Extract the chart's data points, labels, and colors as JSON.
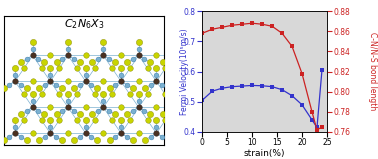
{
  "strain": [
    0,
    2,
    4,
    6,
    8,
    10,
    12,
    14,
    16,
    18,
    20,
    22,
    23,
    24
  ],
  "fermi_velocity": [
    0.505,
    0.535,
    0.545,
    0.55,
    0.552,
    0.554,
    0.553,
    0.55,
    0.54,
    0.52,
    0.49,
    0.44,
    0.415,
    0.605
  ],
  "bond_length": [
    0.858,
    0.862,
    0.864,
    0.866,
    0.867,
    0.868,
    0.867,
    0.865,
    0.858,
    0.845,
    0.818,
    0.78,
    0.762,
    0.765
  ],
  "fermi_color": "#3333cc",
  "bond_color": "#cc2222",
  "xlabel": "strain(%)",
  "ylabel_left": "Fermi Velocity(10⁵m/s)",
  "ylabel_right": "C-N/N-S bond length",
  "ylim_left": [
    0.4,
    0.8
  ],
  "ylim_right": [
    0.76,
    0.88
  ],
  "yticks_left": [
    0.4,
    0.5,
    0.6,
    0.7,
    0.8
  ],
  "yticks_right": [
    0.76,
    0.78,
    0.8,
    0.82,
    0.84,
    0.86,
    0.88
  ],
  "xlim": [
    0,
    25
  ],
  "xticks": [
    0,
    5,
    10,
    15,
    20,
    25
  ],
  "title": "$C_2N_6X_3$",
  "bg_color": "#d8d8d8",
  "crystal_yellow": "#c8d400",
  "crystal_blue": "#7ab0d0",
  "crystal_dark": "#4a3020"
}
